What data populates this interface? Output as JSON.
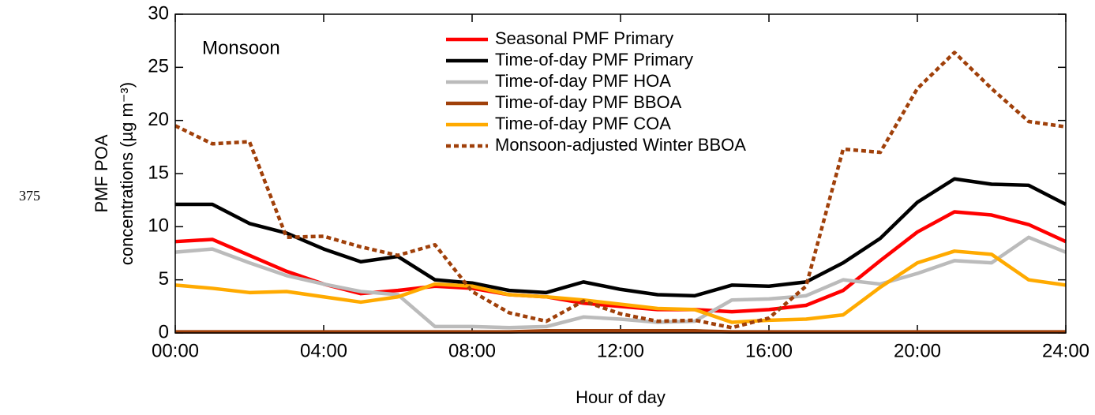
{
  "side_label": "375",
  "chart_data": {
    "type": "line",
    "annotation": "Monsoon",
    "xlabel": "Hour of day",
    "ylabel": [
      "PMF POA",
      "concentrations (µg m⁻³)"
    ],
    "x": [
      0,
      1,
      2,
      3,
      4,
      5,
      6,
      7,
      8,
      9,
      10,
      11,
      12,
      13,
      14,
      15,
      16,
      17,
      18,
      19,
      20,
      21,
      22,
      23,
      24
    ],
    "xlim": [
      0,
      24
    ],
    "xticks": [
      {
        "value": 0,
        "label": "00:00"
      },
      {
        "value": 4,
        "label": "04:00"
      },
      {
        "value": 8,
        "label": "08:00"
      },
      {
        "value": 12,
        "label": "12:00"
      },
      {
        "value": 16,
        "label": "16:00"
      },
      {
        "value": 20,
        "label": "20:00"
      },
      {
        "value": 24,
        "label": "24:00"
      }
    ],
    "ylim": [
      0,
      30
    ],
    "yticks": [
      0,
      5,
      10,
      15,
      20,
      25,
      30
    ],
    "series": [
      {
        "name": "Seasonal PMF Primary",
        "color": "#ff0000",
        "dash": false,
        "values": [
          8.6,
          8.8,
          7.3,
          5.8,
          4.6,
          3.7,
          4.0,
          4.4,
          4.2,
          3.6,
          3.4,
          2.8,
          2.5,
          2.2,
          2.2,
          2.0,
          2.2,
          2.6,
          4.0,
          6.8,
          9.5,
          11.4,
          11.1,
          10.2,
          8.6
        ]
      },
      {
        "name": "Time-of-day PMF Primary",
        "color": "#000000",
        "dash": false,
        "values": [
          12.1,
          12.1,
          10.3,
          9.4,
          7.9,
          6.7,
          7.2,
          5.0,
          4.7,
          4.0,
          3.8,
          4.8,
          4.1,
          3.6,
          3.5,
          4.5,
          4.4,
          4.8,
          6.6,
          8.9,
          12.3,
          14.5,
          14.0,
          13.9,
          12.1
        ]
      },
      {
        "name": "Time-of-day PMF HOA",
        "color": "#bbbbbb",
        "dash": false,
        "values": [
          7.6,
          7.9,
          6.6,
          5.4,
          4.6,
          3.9,
          3.6,
          0.6,
          0.6,
          0.5,
          0.6,
          1.5,
          1.3,
          1.0,
          1.1,
          3.1,
          3.2,
          3.5,
          5.0,
          4.6,
          5.6,
          6.8,
          6.6,
          9.0,
          7.6
        ]
      },
      {
        "name": "Time-of-day PMF BBOA",
        "color": "#a0400a",
        "dash": false,
        "values": [
          0.1,
          0.1,
          0.1,
          0.1,
          0.1,
          0.1,
          0.1,
          0.1,
          0.1,
          0.1,
          0.2,
          0.2,
          0.2,
          0.2,
          0.2,
          0.1,
          0.1,
          0.1,
          0.1,
          0.1,
          0.1,
          0.1,
          0.1,
          0.1,
          0.1
        ]
      },
      {
        "name": "Time-of-day PMF COA",
        "color": "#ffaa00",
        "dash": false,
        "values": [
          4.5,
          4.2,
          3.8,
          3.9,
          3.4,
          2.9,
          3.4,
          4.6,
          4.4,
          3.6,
          3.4,
          3.1,
          2.7,
          2.3,
          2.2,
          1.0,
          1.2,
          1.3,
          1.7,
          4.3,
          6.6,
          7.7,
          7.4,
          5.0,
          4.5
        ]
      },
      {
        "name": "Monsoon-adjusted Winter BBOA",
        "color": "#a0400a",
        "dash": true,
        "values": [
          19.5,
          17.8,
          18.0,
          9.0,
          9.1,
          8.1,
          7.3,
          8.3,
          3.9,
          1.9,
          1.1,
          3.0,
          1.8,
          1.1,
          1.2,
          0.5,
          1.4,
          4.4,
          17.3,
          17.0,
          23.0,
          26.4,
          23.0,
          19.9,
          19.4
        ]
      }
    ]
  }
}
